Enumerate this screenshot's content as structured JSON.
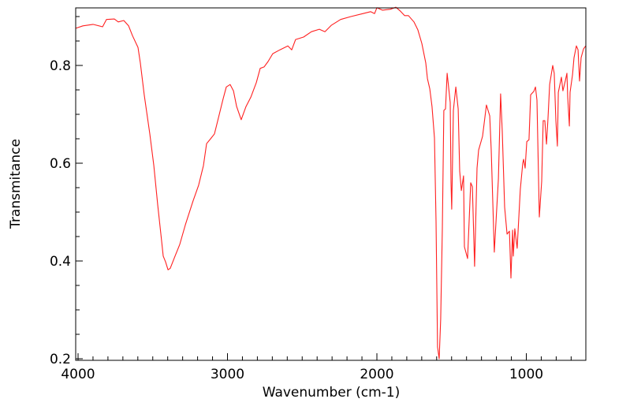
{
  "chart_data": {
    "type": "line",
    "title": "",
    "xlabel": "Wavenumber (cm-1)",
    "ylabel": "Transmitance",
    "xlim": [
      4016,
      602
    ],
    "ylim": [
      0.2,
      0.918
    ],
    "x_reversed": true,
    "grid": false,
    "xticks": [
      4000,
      3000,
      2000,
      1000
    ],
    "xtick_labels": [
      "4000",
      "3000",
      "2000",
      "1000"
    ],
    "yticks": [
      0.2,
      0.4,
      0.6,
      0.8
    ],
    "ytick_labels": [
      "0.2",
      "0.4",
      "0.6",
      "0.8"
    ],
    "series": [
      {
        "name": "spectrum",
        "color": "#ff2020",
        "points": [
          [
            4016,
            0.876
          ],
          [
            3968,
            0.881
          ],
          [
            3900,
            0.884
          ],
          [
            3836,
            0.879
          ],
          [
            3810,
            0.894
          ],
          [
            3757,
            0.895
          ],
          [
            3731,
            0.889
          ],
          [
            3694,
            0.892
          ],
          [
            3662,
            0.881
          ],
          [
            3636,
            0.861
          ],
          [
            3599,
            0.837
          ],
          [
            3583,
            0.805
          ],
          [
            3557,
            0.74
          ],
          [
            3520,
            0.66
          ],
          [
            3493,
            0.595
          ],
          [
            3467,
            0.515
          ],
          [
            3441,
            0.442
          ],
          [
            3430,
            0.41
          ],
          [
            3414,
            0.398
          ],
          [
            3398,
            0.382
          ],
          [
            3383,
            0.385
          ],
          [
            3351,
            0.41
          ],
          [
            3319,
            0.434
          ],
          [
            3282,
            0.474
          ],
          [
            3230,
            0.523
          ],
          [
            3193,
            0.555
          ],
          [
            3161,
            0.595
          ],
          [
            3140,
            0.64
          ],
          [
            3113,
            0.65
          ],
          [
            3087,
            0.66
          ],
          [
            3061,
            0.692
          ],
          [
            3029,
            0.732
          ],
          [
            3008,
            0.756
          ],
          [
            2982,
            0.761
          ],
          [
            2960,
            0.748
          ],
          [
            2939,
            0.716
          ],
          [
            2908,
            0.689
          ],
          [
            2876,
            0.716
          ],
          [
            2844,
            0.735
          ],
          [
            2807,
            0.765
          ],
          [
            2781,
            0.794
          ],
          [
            2755,
            0.797
          ],
          [
            2728,
            0.808
          ],
          [
            2697,
            0.824
          ],
          [
            2649,
            0.832
          ],
          [
            2596,
            0.84
          ],
          [
            2570,
            0.832
          ],
          [
            2544,
            0.853
          ],
          [
            2491,
            0.858
          ],
          [
            2438,
            0.869
          ],
          [
            2385,
            0.874
          ],
          [
            2348,
            0.869
          ],
          [
            2306,
            0.882
          ],
          [
            2243,
            0.894
          ],
          [
            2174,
            0.9
          ],
          [
            2095,
            0.906
          ],
          [
            2042,
            0.91
          ],
          [
            2016,
            0.906
          ],
          [
            2000,
            0.918
          ],
          [
            1963,
            0.913
          ],
          [
            1910,
            0.915
          ],
          [
            1873,
            0.919
          ],
          [
            1842,
            0.911
          ],
          [
            1815,
            0.902
          ],
          [
            1789,
            0.902
          ],
          [
            1752,
            0.889
          ],
          [
            1726,
            0.873
          ],
          [
            1699,
            0.845
          ],
          [
            1673,
            0.805
          ],
          [
            1662,
            0.773
          ],
          [
            1646,
            0.752
          ],
          [
            1631,
            0.716
          ],
          [
            1615,
            0.652
          ],
          [
            1604,
            0.482
          ],
          [
            1594,
            0.224
          ],
          [
            1583,
            0.2
          ],
          [
            1573,
            0.281
          ],
          [
            1562,
            0.466
          ],
          [
            1552,
            0.708
          ],
          [
            1541,
            0.711
          ],
          [
            1530,
            0.784
          ],
          [
            1509,
            0.724
          ],
          [
            1504,
            0.56
          ],
          [
            1499,
            0.506
          ],
          [
            1488,
            0.708
          ],
          [
            1472,
            0.756
          ],
          [
            1456,
            0.711
          ],
          [
            1446,
            0.584
          ],
          [
            1435,
            0.544
          ],
          [
            1420,
            0.574
          ],
          [
            1414,
            0.429
          ],
          [
            1393,
            0.405
          ],
          [
            1372,
            0.56
          ],
          [
            1361,
            0.552
          ],
          [
            1346,
            0.389
          ],
          [
            1330,
            0.59
          ],
          [
            1319,
            0.627
          ],
          [
            1293,
            0.655
          ],
          [
            1267,
            0.719
          ],
          [
            1245,
            0.697
          ],
          [
            1235,
            0.627
          ],
          [
            1214,
            0.418
          ],
          [
            1187,
            0.568
          ],
          [
            1172,
            0.742
          ],
          [
            1161,
            0.665
          ],
          [
            1145,
            0.51
          ],
          [
            1129,
            0.455
          ],
          [
            1113,
            0.461
          ],
          [
            1103,
            0.365
          ],
          [
            1092,
            0.463
          ],
          [
            1087,
            0.41
          ],
          [
            1077,
            0.466
          ],
          [
            1061,
            0.426
          ],
          [
            1040,
            0.547
          ],
          [
            1024,
            0.6
          ],
          [
            1018,
            0.608
          ],
          [
            1008,
            0.59
          ],
          [
            997,
            0.644
          ],
          [
            982,
            0.648
          ],
          [
            971,
            0.74
          ],
          [
            950,
            0.747
          ],
          [
            939,
            0.756
          ],
          [
            929,
            0.729
          ],
          [
            913,
            0.49
          ],
          [
            897,
            0.563
          ],
          [
            887,
            0.687
          ],
          [
            876,
            0.687
          ],
          [
            865,
            0.639
          ],
          [
            855,
            0.692
          ],
          [
            844,
            0.761
          ],
          [
            823,
            0.8
          ],
          [
            813,
            0.784
          ],
          [
            802,
            0.687
          ],
          [
            792,
            0.635
          ],
          [
            786,
            0.745
          ],
          [
            765,
            0.776
          ],
          [
            755,
            0.748
          ],
          [
            739,
            0.769
          ],
          [
            728,
            0.784
          ],
          [
            723,
            0.735
          ],
          [
            712,
            0.676
          ],
          [
            707,
            0.745
          ],
          [
            691,
            0.781
          ],
          [
            681,
            0.816
          ],
          [
            665,
            0.84
          ],
          [
            654,
            0.832
          ],
          [
            644,
            0.768
          ],
          [
            633,
            0.816
          ],
          [
            617,
            0.834
          ],
          [
            602,
            0.84
          ]
        ]
      }
    ]
  }
}
